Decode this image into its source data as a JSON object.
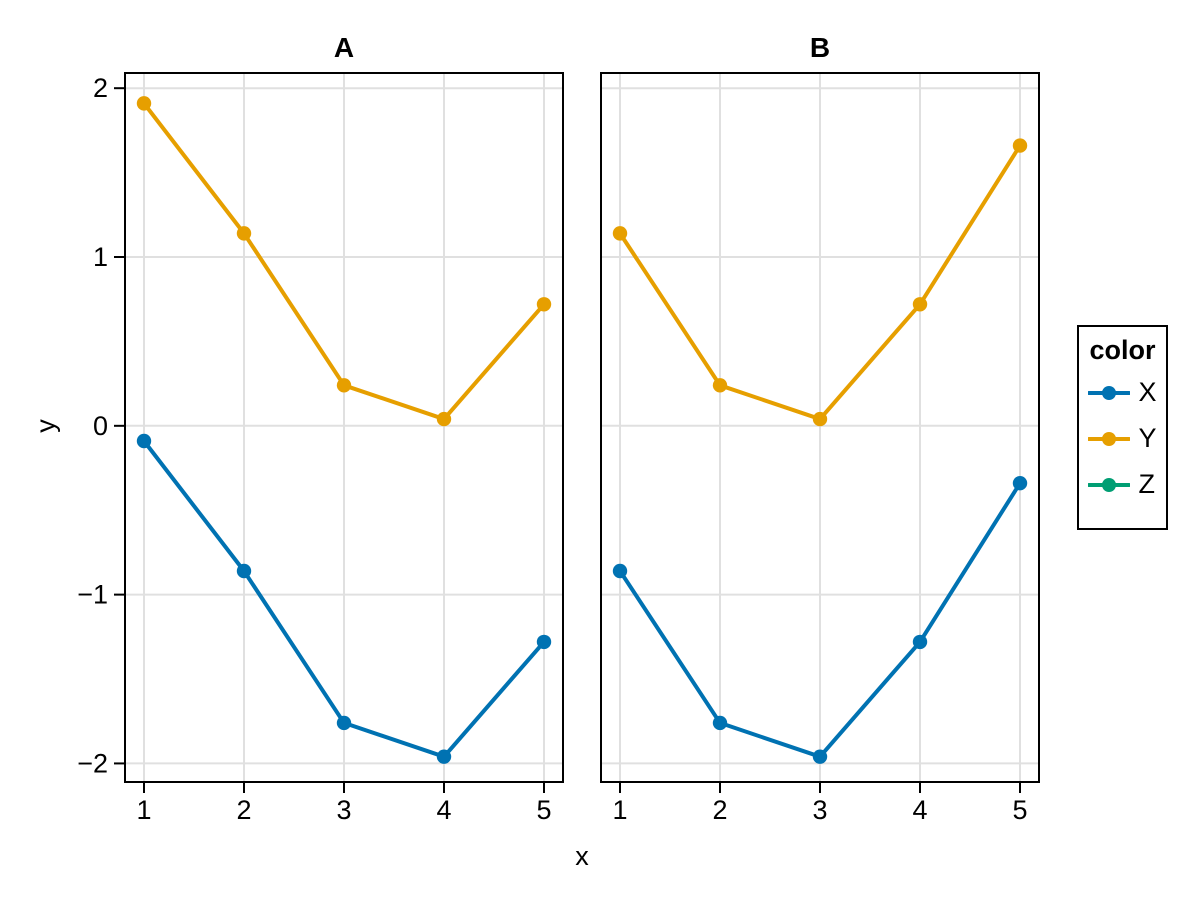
{
  "figure": {
    "background": "#ffffff",
    "xlabel": "x",
    "ylabel": "y",
    "text_color": "#000000",
    "grid_color": "#e0e0e0",
    "frame_color": "#000000",
    "legend": {
      "title": "color",
      "entries": [
        {
          "label": "X",
          "color": "#0072B2"
        },
        {
          "label": "Y",
          "color": "#E69F00"
        },
        {
          "label": "Z",
          "color": "#009E73"
        }
      ]
    }
  },
  "chart_data": [
    {
      "type": "line",
      "title": "A",
      "xlabel": "x",
      "ylabel": "y",
      "x": [
        1,
        2,
        3,
        4,
        5
      ],
      "series": [
        {
          "name": "X",
          "color": "#0072B2",
          "values": [
            -0.09,
            -0.86,
            -1.76,
            -1.96,
            -1.28
          ]
        },
        {
          "name": "Y",
          "color": "#E69F00",
          "values": [
            1.91,
            1.14,
            0.24,
            0.04,
            0.72
          ]
        }
      ],
      "xticks": [
        1,
        2,
        3,
        4,
        5
      ],
      "yticks": [
        -2,
        -1,
        0,
        1,
        2
      ],
      "xlim": [
        0.81,
        5.19
      ],
      "ylim": [
        -2.11,
        2.09
      ],
      "grid": true,
      "show_y_tick_labels": true
    },
    {
      "type": "line",
      "title": "B",
      "xlabel": "x",
      "ylabel": "y",
      "x": [
        1,
        2,
        3,
        4,
        5
      ],
      "series": [
        {
          "name": "X",
          "color": "#0072B2",
          "values": [
            -0.86,
            -1.76,
            -1.96,
            -1.28,
            -0.34
          ]
        },
        {
          "name": "Y",
          "color": "#E69F00",
          "values": [
            1.14,
            0.24,
            0.04,
            0.72,
            1.66
          ]
        }
      ],
      "xticks": [
        1,
        2,
        3,
        4,
        5
      ],
      "yticks": [
        -2,
        -1,
        0,
        1,
        2
      ],
      "xlim": [
        0.81,
        5.19
      ],
      "ylim": [
        -2.11,
        2.09
      ],
      "grid": true,
      "show_y_tick_labels": false
    }
  ]
}
